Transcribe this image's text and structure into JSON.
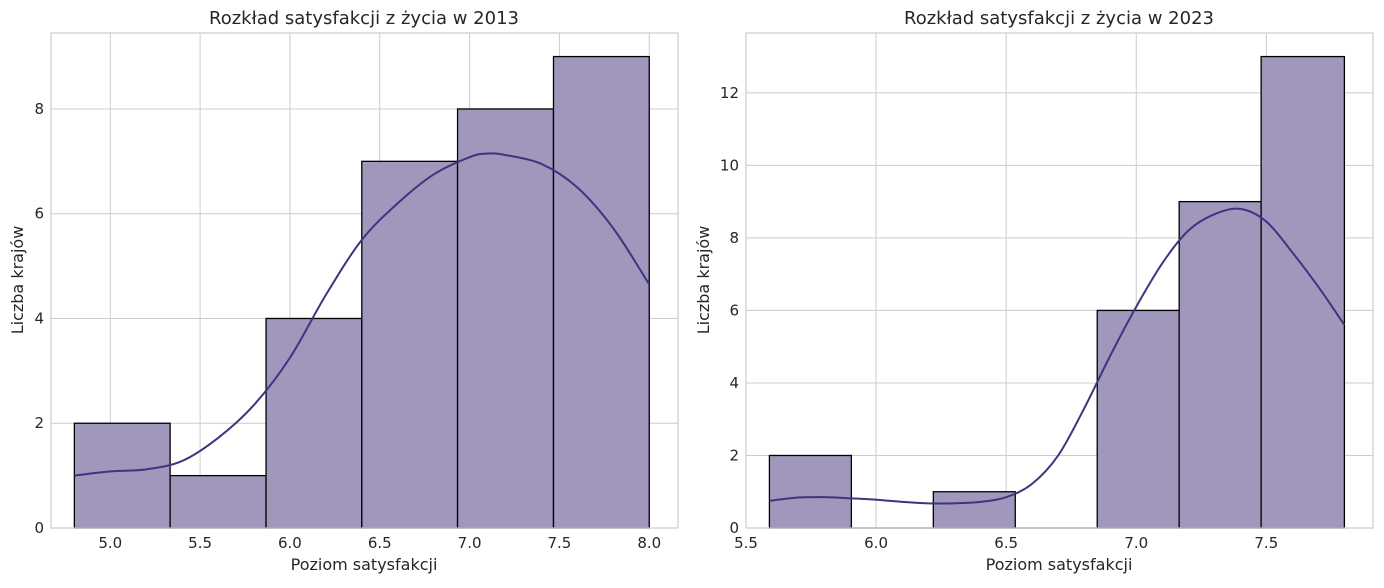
{
  "chart_data": [
    {
      "type": "bar",
      "title": "Rozkład satysfakcji z życia w 2013",
      "xlabel": "Poziom satysfakcji",
      "ylabel": "Liczba krajów",
      "bin_edges": [
        4.8,
        5.333,
        5.867,
        6.4,
        6.933,
        7.467,
        8.0
      ],
      "values": [
        2,
        1,
        4,
        7,
        8,
        9
      ],
      "kde": {
        "x": [
          4.8,
          5.0,
          5.2,
          5.4,
          5.6,
          5.8,
          6.0,
          6.2,
          6.4,
          6.6,
          6.8,
          7.0,
          7.1,
          7.2,
          7.4,
          7.6,
          7.8,
          8.0
        ],
        "y": [
          1.0,
          1.08,
          1.12,
          1.28,
          1.72,
          2.35,
          3.25,
          4.45,
          5.5,
          6.2,
          6.75,
          7.08,
          7.15,
          7.12,
          6.95,
          6.5,
          5.72,
          4.65
        ]
      },
      "xlim": [
        4.67,
        8.16
      ],
      "ylim": [
        0,
        9.45
      ],
      "xticks": [
        5.0,
        5.5,
        6.0,
        6.5,
        7.0,
        7.5,
        8.0
      ],
      "xtick_labels": [
        "5.0",
        "5.5",
        "6.0",
        "6.5",
        "7.0",
        "7.5",
        "8.0"
      ],
      "yticks": [
        0,
        2,
        4,
        6,
        8
      ],
      "ytick_labels": [
        "0",
        "2",
        "4",
        "6",
        "8"
      ],
      "grid": true,
      "bar_color": "#a197bc",
      "line_color": "#3f3481"
    },
    {
      "type": "bar",
      "title": "Rozkład satysfakcji z życia w 2023",
      "xlabel": "Poziom satysfakcji",
      "ylabel": "Liczba krajów",
      "bin_edges": [
        5.59,
        5.905,
        6.22,
        6.535,
        6.85,
        7.165,
        7.48,
        7.8
      ],
      "values": [
        2,
        0,
        1,
        0,
        6,
        9,
        13
      ],
      "kde": {
        "x": [
          5.59,
          5.7,
          5.8,
          5.9,
          6.0,
          6.1,
          6.2,
          6.3,
          6.4,
          6.5,
          6.6,
          6.7,
          6.8,
          6.9,
          7.0,
          7.1,
          7.2,
          7.3,
          7.4,
          7.5,
          7.6,
          7.7,
          7.8
        ],
        "y": [
          0.75,
          0.84,
          0.85,
          0.82,
          0.78,
          0.72,
          0.68,
          0.68,
          0.72,
          0.85,
          1.22,
          2.0,
          3.3,
          4.75,
          6.1,
          7.3,
          8.2,
          8.65,
          8.8,
          8.45,
          7.6,
          6.65,
          5.6
        ]
      },
      "xlim": [
        5.5,
        7.91
      ],
      "ylim": [
        0,
        13.65
      ],
      "xticks": [
        5.5,
        6.0,
        6.5,
        7.0,
        7.5
      ],
      "xtick_labels": [
        "5.5",
        "6.0",
        "6.5",
        "7.0",
        "7.5"
      ],
      "yticks": [
        0,
        2,
        4,
        6,
        8,
        10,
        12
      ],
      "ytick_labels": [
        "0",
        "2",
        "4",
        "6",
        "8",
        "10",
        "12"
      ],
      "grid": true,
      "bar_color": "#a197bc",
      "line_color": "#3f3481"
    }
  ]
}
